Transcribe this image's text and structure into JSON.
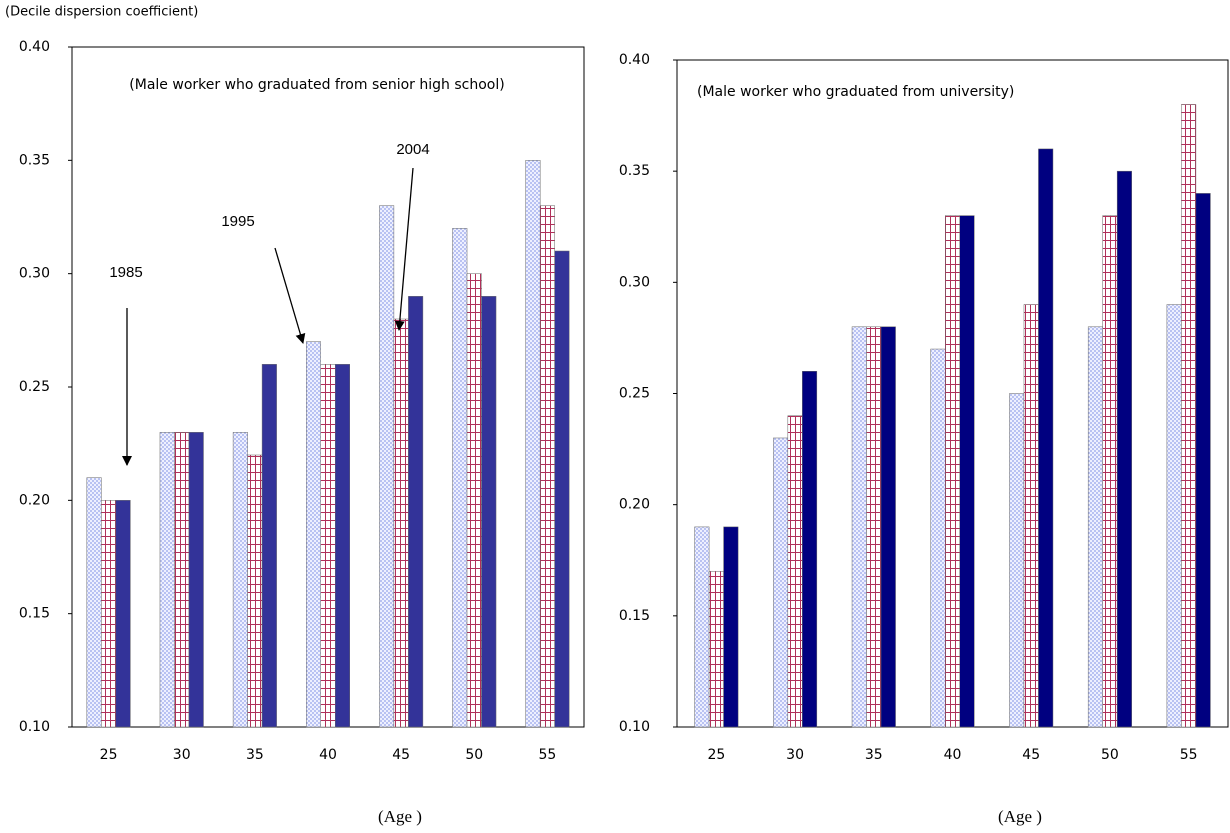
{
  "chart_data": [
    {
      "type": "bar",
      "ylabel": "(Decile dispersion coefficient)",
      "title": "(Male worker who graduated from senior high school)",
      "xlabel": "(Age )",
      "categories": [
        "25",
        "30",
        "35",
        "40",
        "45",
        "50",
        "55"
      ],
      "series": [
        {
          "name": "1985",
          "color": "#a9b4ee",
          "values": [
            0.21,
            0.23,
            0.23,
            0.27,
            0.33,
            0.32,
            0.35
          ]
        },
        {
          "name": "1995",
          "color": "#b0305a",
          "values": [
            0.2,
            0.23,
            0.22,
            0.26,
            0.28,
            0.3,
            0.33
          ]
        },
        {
          "name": "2004",
          "color": "#333399",
          "values": [
            0.2,
            0.23,
            0.26,
            0.26,
            0.29,
            0.29,
            0.31
          ]
        }
      ],
      "ylim": [
        0.1,
        0.4
      ],
      "yticks": [
        {
          "value": 0.1,
          "label": "0.10"
        },
        {
          "value": 0.15,
          "label": "0.15"
        },
        {
          "value": 0.2,
          "label": "0.20"
        },
        {
          "value": 0.25,
          "label": "0.25"
        },
        {
          "value": 0.3,
          "label": "0.30"
        },
        {
          "value": 0.35,
          "label": "0.35"
        },
        {
          "value": 0.4,
          "label": "0.40"
        }
      ]
    },
    {
      "type": "bar",
      "title": "(Male worker who graduated from university)",
      "xlabel": "(Age )",
      "categories": [
        "25",
        "30",
        "35",
        "40",
        "45",
        "50",
        "55"
      ],
      "series": [
        {
          "color": "#a9b4ee",
          "values": [
            0.19,
            0.23,
            0.28,
            0.27,
            0.25,
            0.28,
            0.29
          ]
        },
        {
          "color": "#b0305a",
          "values": [
            0.17,
            0.24,
            0.28,
            0.33,
            0.29,
            0.33,
            0.38
          ]
        },
        {
          "color": "#000080",
          "values": [
            0.19,
            0.26,
            0.28,
            0.33,
            0.36,
            0.35,
            0.34
          ]
        }
      ],
      "ylim": [
        0.1,
        0.4
      ],
      "yticks": [
        {
          "value": 0.1,
          "label": "0.10"
        },
        {
          "value": 0.15,
          "label": "0.15"
        },
        {
          "value": 0.2,
          "label": "0.20"
        },
        {
          "value": 0.25,
          "label": "0.25"
        },
        {
          "value": 0.3,
          "label": "0.30"
        },
        {
          "value": 0.35,
          "label": "0.35"
        },
        {
          "value": 0.4,
          "label": "0.40"
        }
      ]
    }
  ]
}
